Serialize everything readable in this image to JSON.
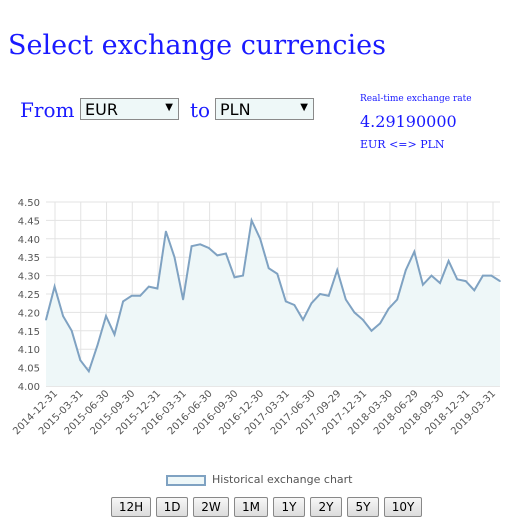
{
  "page": {
    "title": "Select exchange currencies",
    "from_label": "From",
    "to_label": "to",
    "from_currency": "EUR",
    "to_currency": "PLN"
  },
  "realtime": {
    "label": "Real-time exchange rate",
    "value": "4.29190000",
    "pair": "EUR <=> PLN"
  },
  "legend": {
    "label": "Historical exchange chart"
  },
  "range_buttons": [
    "12H",
    "1D",
    "2W",
    "1M",
    "1Y",
    "2Y",
    "5Y",
    "10Y"
  ],
  "colors": {
    "text_blue": "#1a1aff",
    "series_line": "#7fa2c2",
    "series_fill": "#eef7f8"
  },
  "chart_data": {
    "type": "area",
    "title": "",
    "xlabel": "",
    "ylabel": "",
    "ylim": [
      4.0,
      4.5
    ],
    "yticks": [
      "4.00",
      "4.05",
      "4.10",
      "4.15",
      "4.20",
      "4.25",
      "4.30",
      "4.35",
      "4.40",
      "4.45",
      "4.50"
    ],
    "xtick_labels": [
      "2014-12-31",
      "2015-03-31",
      "2015-06-30",
      "2015-09-30",
      "2015-12-31",
      "2016-03-31",
      "2016-06-30",
      "2016-09-30",
      "2016-12-30",
      "2017-03-31",
      "2017-06-30",
      "2017-09-29",
      "2017-12-31",
      "2018-03-30",
      "2018-06-29",
      "2018-09-30",
      "2018-12-31",
      "2019-03-31"
    ],
    "grid": true,
    "series": [
      {
        "values": [
          4.18,
          4.27,
          4.19,
          4.15,
          4.07,
          4.04,
          4.11,
          4.19,
          4.14,
          4.23,
          4.245,
          4.245,
          4.27,
          4.265,
          4.42,
          4.35,
          4.235,
          4.38,
          4.385,
          4.375,
          4.355,
          4.36,
          4.295,
          4.3,
          4.45,
          4.4,
          4.32,
          4.305,
          4.23,
          4.22,
          4.18,
          4.225,
          4.25,
          4.245,
          4.315,
          4.235,
          4.2,
          4.18,
          4.15,
          4.17,
          4.21,
          4.235,
          4.315,
          4.365,
          4.275,
          4.3,
          4.28,
          4.34,
          4.29,
          4.285,
          4.26,
          4.3,
          4.3,
          4.285
        ]
      }
    ]
  }
}
